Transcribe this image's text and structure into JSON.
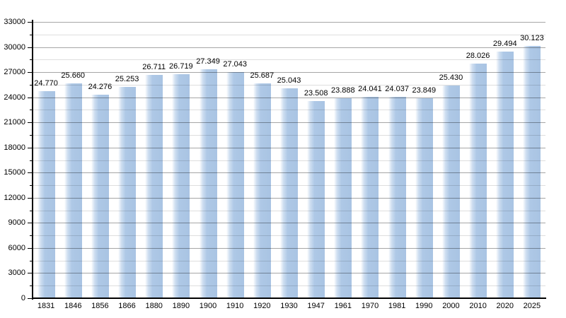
{
  "chart_data": {
    "type": "bar",
    "title": "",
    "xlabel": "",
    "ylabel": "",
    "categories": [
      "1831",
      "1846",
      "1856",
      "1866",
      "1880",
      "1890",
      "1900",
      "1910",
      "1920",
      "1930",
      "1947",
      "1961",
      "1970",
      "1981",
      "1990",
      "2000",
      "2010",
      "2020",
      "2025"
    ],
    "values": [
      24770,
      25660,
      24276,
      25253,
      26711,
      26719,
      27349,
      27043,
      25687,
      25043,
      23508,
      23888,
      24041,
      24037,
      23849,
      25430,
      28026,
      29494,
      30123
    ],
    "value_labels": [
      "24.770",
      "25.660",
      "24.276",
      "25.253",
      "26.711",
      "26.719",
      "27.349",
      "27.043",
      "25.687",
      "25.043",
      "23.508",
      "23.888",
      "24.041",
      "24.037",
      "23.849",
      "25.430",
      "28.026",
      "29.494",
      "30.123"
    ],
    "ylim": [
      0,
      33000
    ],
    "y_major_step": 3000,
    "y_minor_step": 1500,
    "y_tick_labels": [
      "0",
      "3000",
      "6000",
      "9000",
      "12000",
      "15000",
      "18000",
      "21000",
      "24000",
      "27000",
      "30000",
      "33000"
    ],
    "grid": "on",
    "legend": "none",
    "colors": {
      "background": "#ffffff",
      "bar_fill": "#aec8e6",
      "bar_fill_edge": "#a9c4e3",
      "bar_gradient_start": "#ffffff",
      "bar_gradient_mid": "#cfdff1",
      "major_grid": "rgba(0,0,0,0.35)",
      "minor_grid": "rgba(0,0,0,0.13)",
      "axis": "#000000",
      "text": "#000000"
    }
  }
}
